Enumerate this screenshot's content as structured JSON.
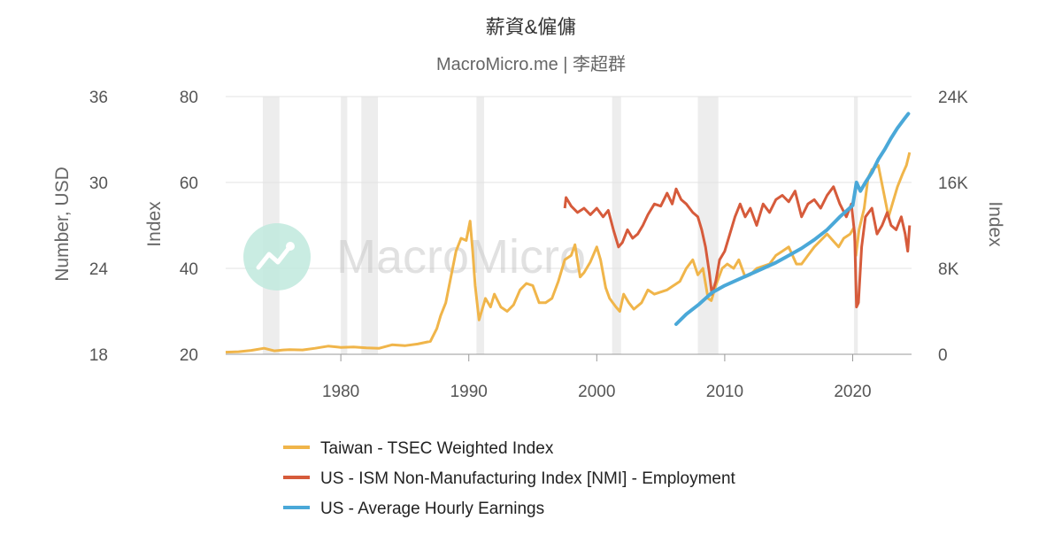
{
  "chart_data": {
    "type": "line",
    "title": "薪資&僱傭",
    "subtitle": "MacroMicro.me | 李超群",
    "watermark": "MacroMicro",
    "x_axis": {
      "min": 1971,
      "max": 2024.6,
      "ticks": [
        "1980",
        "1990",
        "2000",
        "2010",
        "2020"
      ]
    },
    "y_axes": [
      {
        "id": "usd",
        "title": "Number, USD",
        "min": 18,
        "max": 36,
        "ticks": [
          "18",
          "24",
          "30",
          "36"
        ],
        "position": "far-left"
      },
      {
        "id": "index",
        "title": "Index",
        "min": 20,
        "max": 80,
        "ticks": [
          "20",
          "40",
          "60",
          "80"
        ],
        "position": "left"
      },
      {
        "id": "taiex",
        "title": "Index",
        "min": 0,
        "max": 24000,
        "ticks": [
          "0",
          "8K",
          "16K",
          "24K"
        ],
        "position": "right"
      }
    ],
    "recessions": [
      [
        1973.9,
        1975.2
      ],
      [
        1980.0,
        1980.5
      ],
      [
        1981.6,
        1982.9
      ],
      [
        1990.6,
        1991.2
      ],
      [
        2001.2,
        2001.9
      ],
      [
        2007.9,
        2009.5
      ],
      [
        2020.1,
        2020.4
      ]
    ],
    "series": [
      {
        "name": "Taiwan - TSEC Weighted Index",
        "color": "#f0b54a",
        "axis": "index",
        "points": [
          [
            1971,
            20.5
          ],
          [
            1972,
            20.6
          ],
          [
            1973,
            20.9
          ],
          [
            1974,
            21.4
          ],
          [
            1974.8,
            20.8
          ],
          [
            1975.5,
            21.0
          ],
          [
            1976,
            21.1
          ],
          [
            1977,
            21.0
          ],
          [
            1978,
            21.4
          ],
          [
            1979,
            21.9
          ],
          [
            1980,
            21.6
          ],
          [
            1981,
            21.7
          ],
          [
            1982,
            21.5
          ],
          [
            1983,
            21.4
          ],
          [
            1984,
            22.2
          ],
          [
            1985,
            22.0
          ],
          [
            1986,
            22.4
          ],
          [
            1987,
            23.0
          ],
          [
            1987.5,
            26.0
          ],
          [
            1987.8,
            29.0
          ],
          [
            1988.2,
            32.0
          ],
          [
            1988.6,
            38.0
          ],
          [
            1989.0,
            44.0
          ],
          [
            1989.4,
            47.0
          ],
          [
            1989.8,
            46.5
          ],
          [
            1990.1,
            51.0
          ],
          [
            1990.3,
            44.0
          ],
          [
            1990.5,
            36.0
          ],
          [
            1990.8,
            28.0
          ],
          [
            1991.0,
            30.0
          ],
          [
            1991.3,
            33.0
          ],
          [
            1991.7,
            31.0
          ],
          [
            1992,
            34.0
          ],
          [
            1992.5,
            31.0
          ],
          [
            1993,
            30.0
          ],
          [
            1993.5,
            31.5
          ],
          [
            1994,
            35.0
          ],
          [
            1994.5,
            36.5
          ],
          [
            1995,
            36.0
          ],
          [
            1995.5,
            32.0
          ],
          [
            1996,
            32.0
          ],
          [
            1996.5,
            33.0
          ],
          [
            1997,
            37.0
          ],
          [
            1997.5,
            42.0
          ],
          [
            1998,
            43.0
          ],
          [
            1998.3,
            45.5
          ],
          [
            1998.7,
            38.0
          ],
          [
            1999,
            39.0
          ],
          [
            1999.5,
            41.5
          ],
          [
            2000.0,
            45.0
          ],
          [
            2000.3,
            42.0
          ],
          [
            2000.7,
            35.5
          ],
          [
            2001.0,
            33.0
          ],
          [
            2001.5,
            31.0
          ],
          [
            2001.8,
            30.0
          ],
          [
            2002.1,
            34.0
          ],
          [
            2002.5,
            32.0
          ],
          [
            2002.9,
            30.5
          ],
          [
            2003.5,
            32.0
          ],
          [
            2004.0,
            35.0
          ],
          [
            2004.5,
            34.0
          ],
          [
            2005.0,
            34.5
          ],
          [
            2005.5,
            35.0
          ],
          [
            2006.0,
            36.0
          ],
          [
            2006.5,
            37.0
          ],
          [
            2007.0,
            40.0
          ],
          [
            2007.5,
            42.0
          ],
          [
            2007.9,
            38.5
          ],
          [
            2008.3,
            40.0
          ],
          [
            2008.7,
            33.0
          ],
          [
            2008.95,
            32.5
          ],
          [
            2009.3,
            36.0
          ],
          [
            2009.8,
            40.0
          ],
          [
            2010.2,
            41.0
          ],
          [
            2010.7,
            40.0
          ],
          [
            2011.1,
            42.0
          ],
          [
            2011.6,
            38.0
          ],
          [
            2012.0,
            38.5
          ],
          [
            2012.5,
            40.0
          ],
          [
            2013,
            40.5
          ],
          [
            2013.5,
            41.0
          ],
          [
            2014,
            43.0
          ],
          [
            2014.5,
            44.0
          ],
          [
            2015.0,
            45.0
          ],
          [
            2015.6,
            41.0
          ],
          [
            2016.0,
            41.0
          ],
          [
            2016.5,
            43.0
          ],
          [
            2017,
            45.0
          ],
          [
            2017.5,
            46.5
          ],
          [
            2018.0,
            48.0
          ],
          [
            2018.6,
            46.0
          ],
          [
            2018.9,
            45.0
          ],
          [
            2019.3,
            47.0
          ],
          [
            2019.8,
            48.0
          ],
          [
            2020.1,
            49.5
          ],
          [
            2020.25,
            43.0
          ],
          [
            2020.5,
            49.0
          ],
          [
            2020.9,
            54.0
          ],
          [
            2021.2,
            61.0
          ],
          [
            2021.5,
            63.0
          ],
          [
            2022.0,
            64.0
          ],
          [
            2022.4,
            58.0
          ],
          [
            2022.8,
            52.0
          ],
          [
            2023.1,
            55.0
          ],
          [
            2023.5,
            59.0
          ],
          [
            2023.9,
            62.0
          ],
          [
            2024.2,
            64.0
          ],
          [
            2024.45,
            67.0
          ]
        ]
      },
      {
        "name": "US - ISM Non-Manufacturing Index [NMI] - Employment",
        "color": "#d65b3b",
        "axis": "index",
        "points": [
          [
            1997.5,
            54.0
          ],
          [
            1997.6,
            56.5
          ],
          [
            1998,
            54.5
          ],
          [
            1998.5,
            53.0
          ],
          [
            1999,
            54.0
          ],
          [
            1999.5,
            52.5
          ],
          [
            2000,
            54.0
          ],
          [
            2000.5,
            52.0
          ],
          [
            2000.9,
            53.5
          ],
          [
            2001.3,
            49.0
          ],
          [
            2001.7,
            45.0
          ],
          [
            2002,
            46.0
          ],
          [
            2002.4,
            49.0
          ],
          [
            2002.8,
            47.0
          ],
          [
            2003.2,
            48.0
          ],
          [
            2003.6,
            50.0
          ],
          [
            2004,
            52.5
          ],
          [
            2004.5,
            55.0
          ],
          [
            2005,
            54.5
          ],
          [
            2005.5,
            57.5
          ],
          [
            2005.9,
            55.0
          ],
          [
            2006.2,
            58.5
          ],
          [
            2006.6,
            56.0
          ],
          [
            2007,
            55.0
          ],
          [
            2007.5,
            53.0
          ],
          [
            2007.9,
            52.0
          ],
          [
            2008.2,
            49.0
          ],
          [
            2008.5,
            45.0
          ],
          [
            2008.8,
            39.0
          ],
          [
            2009.0,
            34.0
          ],
          [
            2009.3,
            37.0
          ],
          [
            2009.6,
            42.0
          ],
          [
            2010,
            44.0
          ],
          [
            2010.4,
            48.0
          ],
          [
            2010.8,
            52.0
          ],
          [
            2011.2,
            55.0
          ],
          [
            2011.6,
            52.0
          ],
          [
            2012,
            54.0
          ],
          [
            2012.5,
            50.0
          ],
          [
            2013,
            55.0
          ],
          [
            2013.5,
            53.0
          ],
          [
            2014,
            56.0
          ],
          [
            2014.5,
            57.0
          ],
          [
            2015,
            55.5
          ],
          [
            2015.5,
            58.0
          ],
          [
            2016,
            52.0
          ],
          [
            2016.5,
            55.0
          ],
          [
            2017,
            56.0
          ],
          [
            2017.5,
            54.0
          ],
          [
            2018,
            57.0
          ],
          [
            2018.5,
            59.0
          ],
          [
            2019,
            55.0
          ],
          [
            2019.5,
            52.0
          ],
          [
            2019.9,
            55.0
          ],
          [
            2020.15,
            48.0
          ],
          [
            2020.3,
            31.0
          ],
          [
            2020.45,
            32.0
          ],
          [
            2020.7,
            45.0
          ],
          [
            2021,
            52.0
          ],
          [
            2021.5,
            54.0
          ],
          [
            2021.9,
            48.0
          ],
          [
            2022.3,
            50.0
          ],
          [
            2022.7,
            53.0
          ],
          [
            2023.0,
            50.0
          ],
          [
            2023.4,
            49.0
          ],
          [
            2023.8,
            52.0
          ],
          [
            2024.1,
            48.0
          ],
          [
            2024.3,
            44.0
          ],
          [
            2024.45,
            50.0
          ]
        ]
      },
      {
        "name": "US - Average Hourly Earnings",
        "color": "#4aa8d8",
        "axis": "usd",
        "points": [
          [
            2006.2,
            20.1
          ],
          [
            2007,
            20.8
          ],
          [
            2008,
            21.5
          ],
          [
            2009,
            22.3
          ],
          [
            2010,
            22.8
          ],
          [
            2011,
            23.2
          ],
          [
            2012,
            23.6
          ],
          [
            2013,
            24.0
          ],
          [
            2014,
            24.4
          ],
          [
            2015,
            24.9
          ],
          [
            2016,
            25.4
          ],
          [
            2017,
            26.0
          ],
          [
            2018,
            26.7
          ],
          [
            2019,
            27.6
          ],
          [
            2020.0,
            28.4
          ],
          [
            2020.3,
            30.0
          ],
          [
            2020.6,
            29.4
          ],
          [
            2021,
            30.0
          ],
          [
            2021.5,
            30.7
          ],
          [
            2022,
            31.6
          ],
          [
            2022.5,
            32.3
          ],
          [
            2023,
            33.1
          ],
          [
            2023.5,
            33.8
          ],
          [
            2024,
            34.4
          ],
          [
            2024.35,
            34.8
          ]
        ]
      }
    ]
  }
}
